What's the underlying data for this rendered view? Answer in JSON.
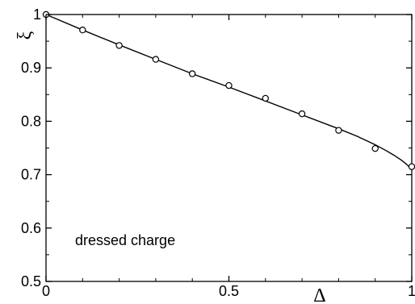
{
  "chart_data": {
    "type": "line",
    "title": "",
    "xlabel": "Δ",
    "ylabel": "ξ",
    "xlim": [
      0,
      1
    ],
    "ylim": [
      0.5,
      1.0
    ],
    "grid": false,
    "x_ticks": [
      0,
      0.5,
      1
    ],
    "x_tick_labels": [
      "0",
      "0.5",
      "1"
    ],
    "y_ticks": [
      0.5,
      0.6,
      0.7,
      0.8,
      0.9,
      1.0
    ],
    "y_tick_labels": [
      "0.5",
      "0.6",
      "0.7",
      "0.8",
      "0.9",
      "1"
    ],
    "annotation": "dressed charge",
    "series": [
      {
        "kind": "line",
        "color": "#000000",
        "x": [
          0,
          0.1,
          0.2,
          0.3,
          0.4,
          0.5,
          0.6,
          0.7,
          0.8,
          0.85,
          0.9,
          0.93,
          0.95,
          0.97,
          0.985,
          1.0
        ],
        "y": [
          1.0,
          0.971,
          0.943,
          0.916,
          0.889,
          0.864,
          0.838,
          0.812,
          0.786,
          0.772,
          0.756,
          0.745,
          0.737,
          0.728,
          0.72,
          0.71
        ]
      },
      {
        "kind": "scatter",
        "marker": "open-circle",
        "color": "#000000",
        "x": [
          0,
          0.1,
          0.2,
          0.3,
          0.4,
          0.5,
          0.6,
          0.7,
          0.8,
          0.9,
          1.0
        ],
        "y": [
          1.0,
          0.971,
          0.942,
          0.916,
          0.889,
          0.867,
          0.843,
          0.814,
          0.783,
          0.749,
          0.715
        ]
      }
    ]
  }
}
